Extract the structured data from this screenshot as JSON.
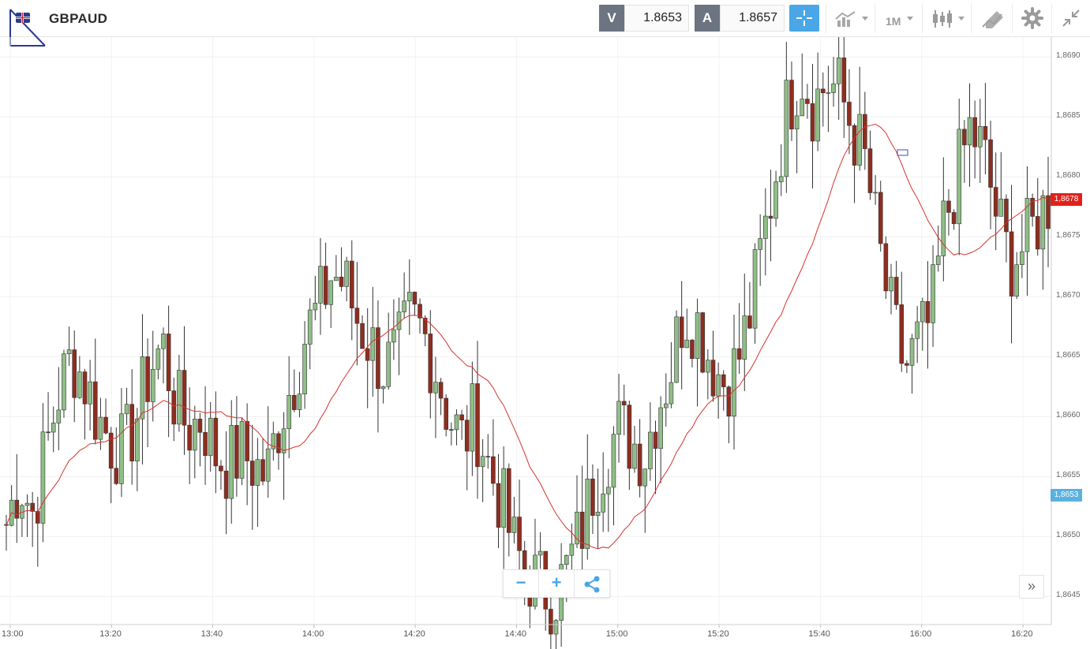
{
  "header": {
    "symbol": "GBPAUD",
    "bid_label": "V",
    "bid_value": "1.8653",
    "ask_label": "A",
    "ask_value": "1.8657",
    "timeframe_label": "1M"
  },
  "colors": {
    "bull": "#8fbf86",
    "bear": "#8e2e1f",
    "ma_line": "#d9322b",
    "accent": "#4aa6e6",
    "current_price_marker": "#e0211b",
    "bid_marker": "#5ab1df"
  },
  "icons": {
    "flag": "uk-flag-icon",
    "crosshair": "crosshair-icon",
    "indicators": "indicators-icon",
    "chart_type": "candlestick-icon",
    "drawing": "drawing-tools-icon",
    "settings": "gear-icon",
    "collapse": "collapse-icon",
    "zoom_out": "minus-icon",
    "zoom_in": "plus-icon",
    "share": "share-icon",
    "scroll_end": "double-chevron-right-icon"
  },
  "controls": {
    "zoom_out_label": "−",
    "zoom_in_label": "+",
    "scroll_end_label": "»"
  },
  "markers": {
    "current_price": "1,8678",
    "bid_price": "1,8653"
  },
  "chart_data": {
    "type": "candlestick",
    "interval": "1M",
    "ylim": [
      1.8642,
      1.8691
    ],
    "x_ticks": [
      "13:00",
      "13:20",
      "13:40",
      "14:00",
      "14:20",
      "14:40",
      "15:00",
      "15:20",
      "15:40",
      "16:00",
      "16:20"
    ],
    "y_ticks": [
      "1,8645",
      "1,8650",
      "1,8655",
      "1,8660",
      "1,8665",
      "1,8670",
      "1,8675",
      "1,8680",
      "1,8685",
      "1,8690"
    ],
    "close_path": [
      1.8651,
      1.8655,
      1.8652,
      1.8657,
      1.8662,
      1.8665,
      1.8663,
      1.866,
      1.8658,
      1.8657,
      1.866,
      1.8664,
      1.8666,
      1.8661,
      1.8659,
      1.866,
      1.8657,
      1.8656,
      1.8657,
      1.8656,
      1.8655,
      1.866,
      1.8663,
      1.8667,
      1.8669,
      1.8672,
      1.8671,
      1.8668,
      1.8666,
      1.8664,
      1.8665,
      1.8668,
      1.8667,
      1.8664,
      1.866,
      1.8658,
      1.866,
      1.8656,
      1.8653,
      1.8649,
      1.8647,
      1.8646,
      1.8645,
      1.8647,
      1.865,
      1.8654,
      1.8657,
      1.8659,
      1.8658,
      1.8657,
      1.8661,
      1.8664,
      1.8669,
      1.8668,
      1.8665,
      1.8663,
      1.8664,
      1.8668,
      1.8674,
      1.868,
      1.8686,
      1.8689,
      1.8686,
      1.8688,
      1.8687,
      1.8684,
      1.8681,
      1.8674,
      1.8668,
      1.8664,
      1.8666,
      1.8668,
      1.8676,
      1.868,
      1.8684,
      1.8682,
      1.8677,
      1.8673,
      1.8674,
      1.8676,
      1.8678
    ]
  }
}
